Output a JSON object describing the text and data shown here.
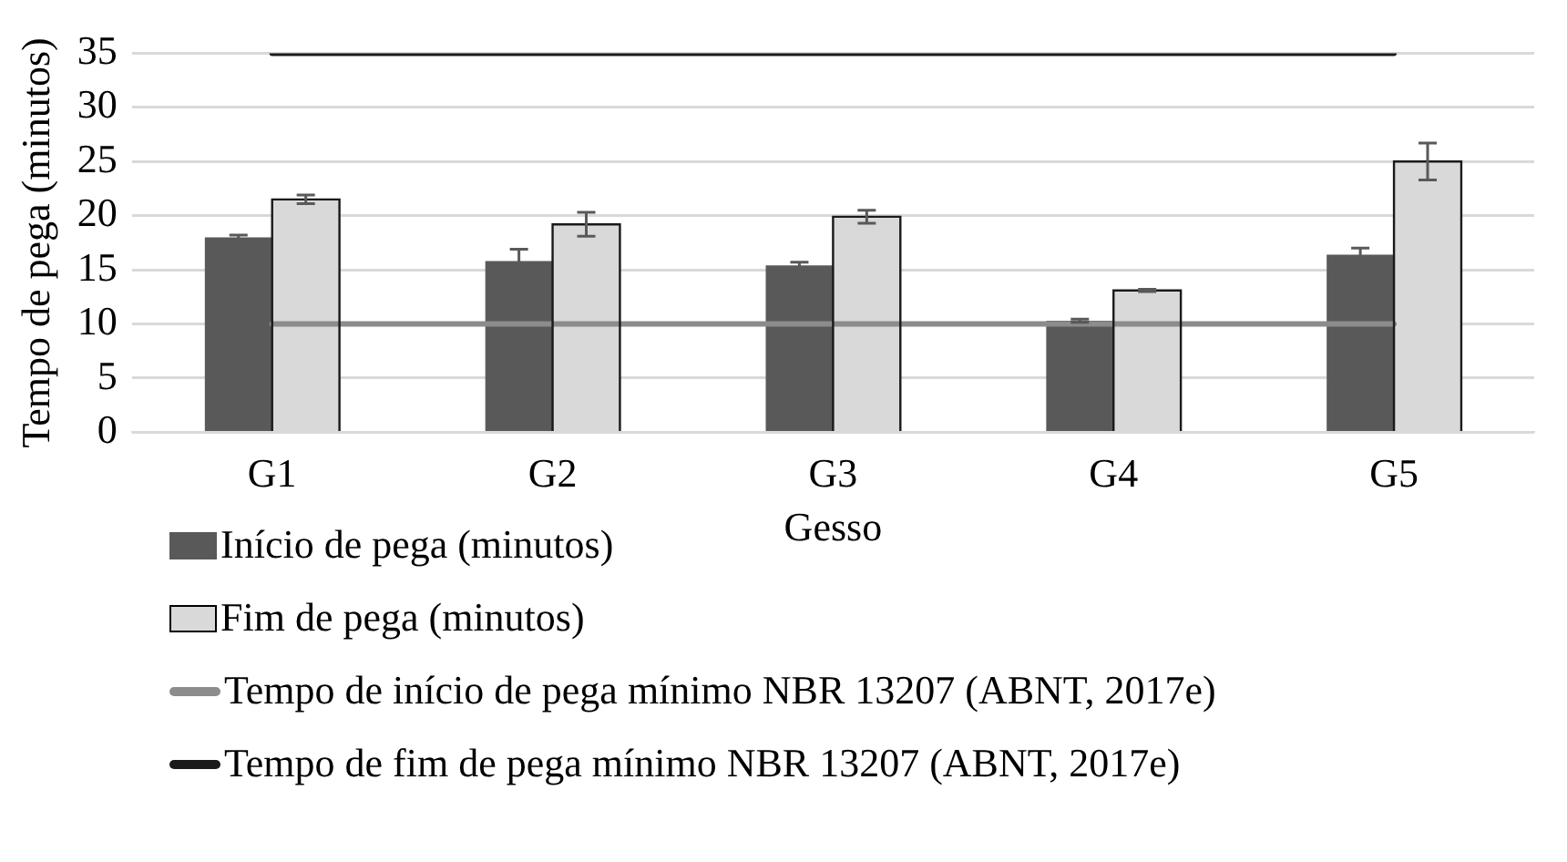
{
  "chart_data": {
    "type": "bar",
    "xlabel": "Gesso",
    "ylabel": "Tempo de pega (minutos)",
    "categories": [
      "G1",
      "G2",
      "G3",
      "G4",
      "G5"
    ],
    "series": [
      {
        "name": "Início de pega (minutos)",
        "color": "#595959",
        "values": [
          18.0,
          15.8,
          15.4,
          10.3,
          16.4
        ],
        "errors": [
          0.2,
          1.1,
          0.3,
          0.15,
          0.6
        ]
      },
      {
        "name": "Fim de pega  (minutos)",
        "color": "#d9d9d9",
        "values": [
          21.5,
          19.2,
          19.9,
          13.1,
          25.0
        ],
        "errors": [
          0.4,
          1.1,
          0.6,
          0.1,
          1.7
        ]
      },
      {
        "name": "Tempo de início de pega mínimo NBR 13207 (ABNT, 2017e)",
        "type": "line",
        "color": "#8c8c8c",
        "values": [
          10,
          10,
          10,
          10,
          10
        ]
      },
      {
        "name": "Tempo de fim de pega mínimo NBR 13207 (ABNT, 2017e)",
        "type": "line",
        "color": "#1a1a1a",
        "values": [
          35,
          35,
          35,
          35,
          35
        ]
      }
    ],
    "ylim": [
      0,
      35
    ],
    "yticks": [
      0,
      5,
      10,
      15,
      20,
      25,
      30,
      35
    ],
    "grid": "y",
    "legend": "bottom",
    "marker": "none",
    "line_style": "solid"
  }
}
